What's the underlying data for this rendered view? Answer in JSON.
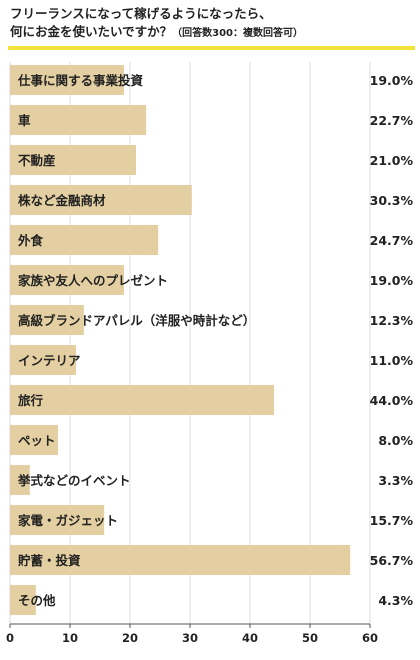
{
  "header": {
    "title_line1": "フリーランスになって稼げるようになったら、",
    "title_line2": "何にお金を使いたいですか？",
    "title_note": "（回答数300：複数回答可）"
  },
  "colors": {
    "bar": "#e3cfa1",
    "accent_rule": "#f2e23a",
    "grid": "#dcdcdc",
    "axis": "#555555",
    "text": "#222222"
  },
  "chart_data": {
    "type": "bar",
    "orientation": "horizontal",
    "categories": [
      "仕事に関する事業投資",
      "車",
      "不動産",
      "株など金融商材",
      "外食",
      "家族や友人へのプレゼント",
      "高級ブランドアパレル（洋服や時計など）",
      "インテリア",
      "旅行",
      "ペット",
      "挙式などのイベント",
      "家電・ガジェット",
      "貯蓄・投資",
      "その他"
    ],
    "values": [
      19.0,
      22.7,
      21.0,
      30.3,
      24.7,
      19.0,
      12.3,
      11.0,
      44.0,
      8.0,
      3.3,
      15.7,
      56.7,
      4.3
    ],
    "value_labels": [
      "19.0%",
      "22.7%",
      "21.0%",
      "30.3%",
      "24.7%",
      "19.0%",
      "12.3%",
      "11.0%",
      "44.0%",
      "8.0%",
      "3.3%",
      "15.7%",
      "56.7%",
      "4.3%"
    ],
    "xlim": [
      0,
      60
    ],
    "xticks": [
      0,
      10,
      20,
      30,
      40,
      50,
      60
    ],
    "xtick_labels": [
      "0",
      "10",
      "20",
      "30",
      "40",
      "50",
      "60"
    ],
    "grid": true,
    "legend": "none"
  }
}
